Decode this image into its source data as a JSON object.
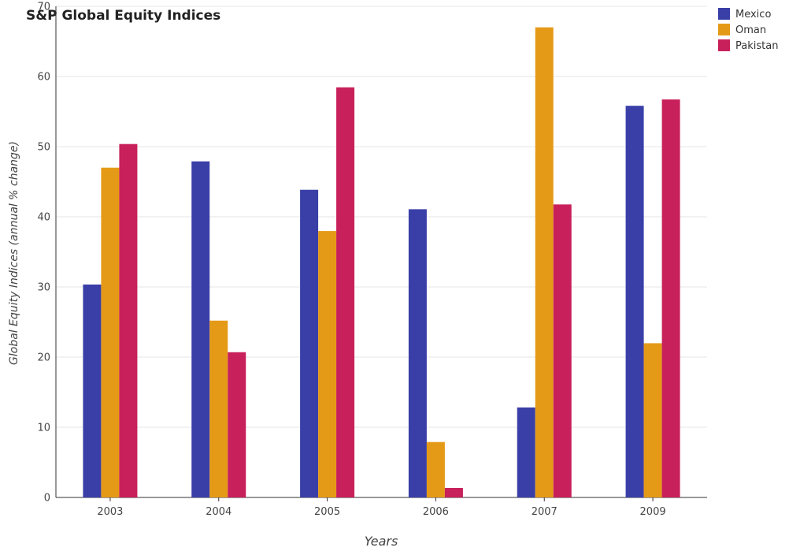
{
  "chart_data": {
    "type": "bar",
    "title": "S&P Global Equity Indices",
    "xlabel": "Years",
    "ylabel": "Global Equity Indices (annual % change)",
    "categories": [
      "2003",
      "2004",
      "2005",
      "2006",
      "2007",
      "2009"
    ],
    "ylim": [
      0,
      70
    ],
    "yticks": [
      0,
      10,
      20,
      30,
      40,
      50,
      60,
      70
    ],
    "grid": true,
    "legend_position": "top-right",
    "series": [
      {
        "name": "Mexico",
        "color": "#3a3fa8",
        "values": [
          30.35,
          47.9,
          43.85,
          41.08,
          12.83,
          55.82
        ]
      },
      {
        "name": "Oman",
        "color": "#e59a17",
        "values": [
          47.0,
          25.2,
          37.97,
          7.9,
          67.0,
          21.98
        ]
      },
      {
        "name": "Pakistan",
        "color": "#c8205a",
        "values": [
          50.37,
          20.7,
          58.45,
          1.35,
          41.76,
          56.72
        ]
      }
    ]
  }
}
